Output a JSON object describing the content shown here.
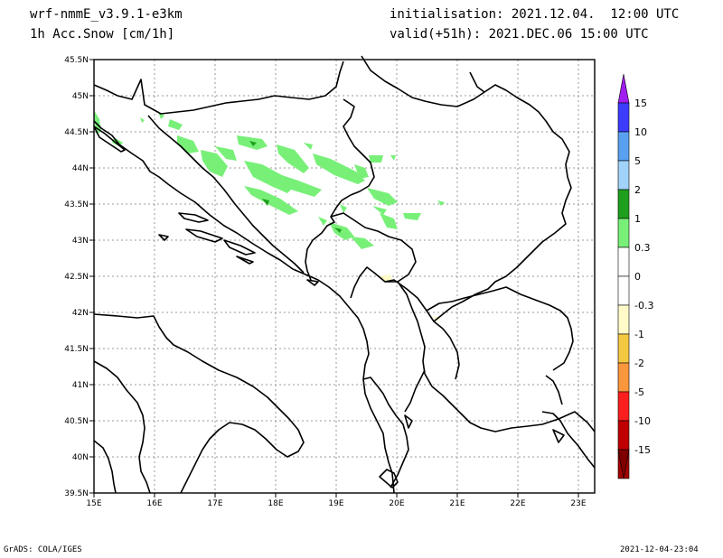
{
  "header": {
    "model": "wrf-nmmE_v3.9.1-e3km",
    "field": "1h Acc.Snow [cm/1h]",
    "init": "initialisation: 2021.12.04.  12:00 UTC",
    "valid": "valid(+51h): 2021.DEC.06 15:00 UTC"
  },
  "footer": {
    "left": "GrADS: COLA/IGES",
    "right": "2021-12-04-23:04"
  },
  "map": {
    "lon_ticks": [
      "15E",
      "16E",
      "17E",
      "18E",
      "19E",
      "20E",
      "21E",
      "22E",
      "23E"
    ],
    "lat_ticks": [
      "45.5N",
      "45N",
      "44.5N",
      "44N",
      "43.5N",
      "43N",
      "42.5N",
      "42N",
      "41.5N",
      "41N",
      "40.5N",
      "40N",
      "39.5N"
    ],
    "gridlines": true
  },
  "colorbar": {
    "labels": [
      "15",
      "10",
      "5",
      "2",
      "1",
      "0.3",
      "0",
      "-0.3",
      "-1",
      "-2",
      "-5",
      "-10",
      "-15"
    ],
    "colors": [
      "#3c3cff",
      "#5aa0f0",
      "#a0d2fa",
      "#1ea01e",
      "#78f078",
      "#ffffff",
      "#ffffff",
      "#fffac8",
      "#f5c841",
      "#fa963c",
      "#fa1e1e",
      "#c00000",
      "#a00000"
    ],
    "top_arrow_color": "#a01ef0",
    "bottom_arrow_color": "#800000"
  }
}
